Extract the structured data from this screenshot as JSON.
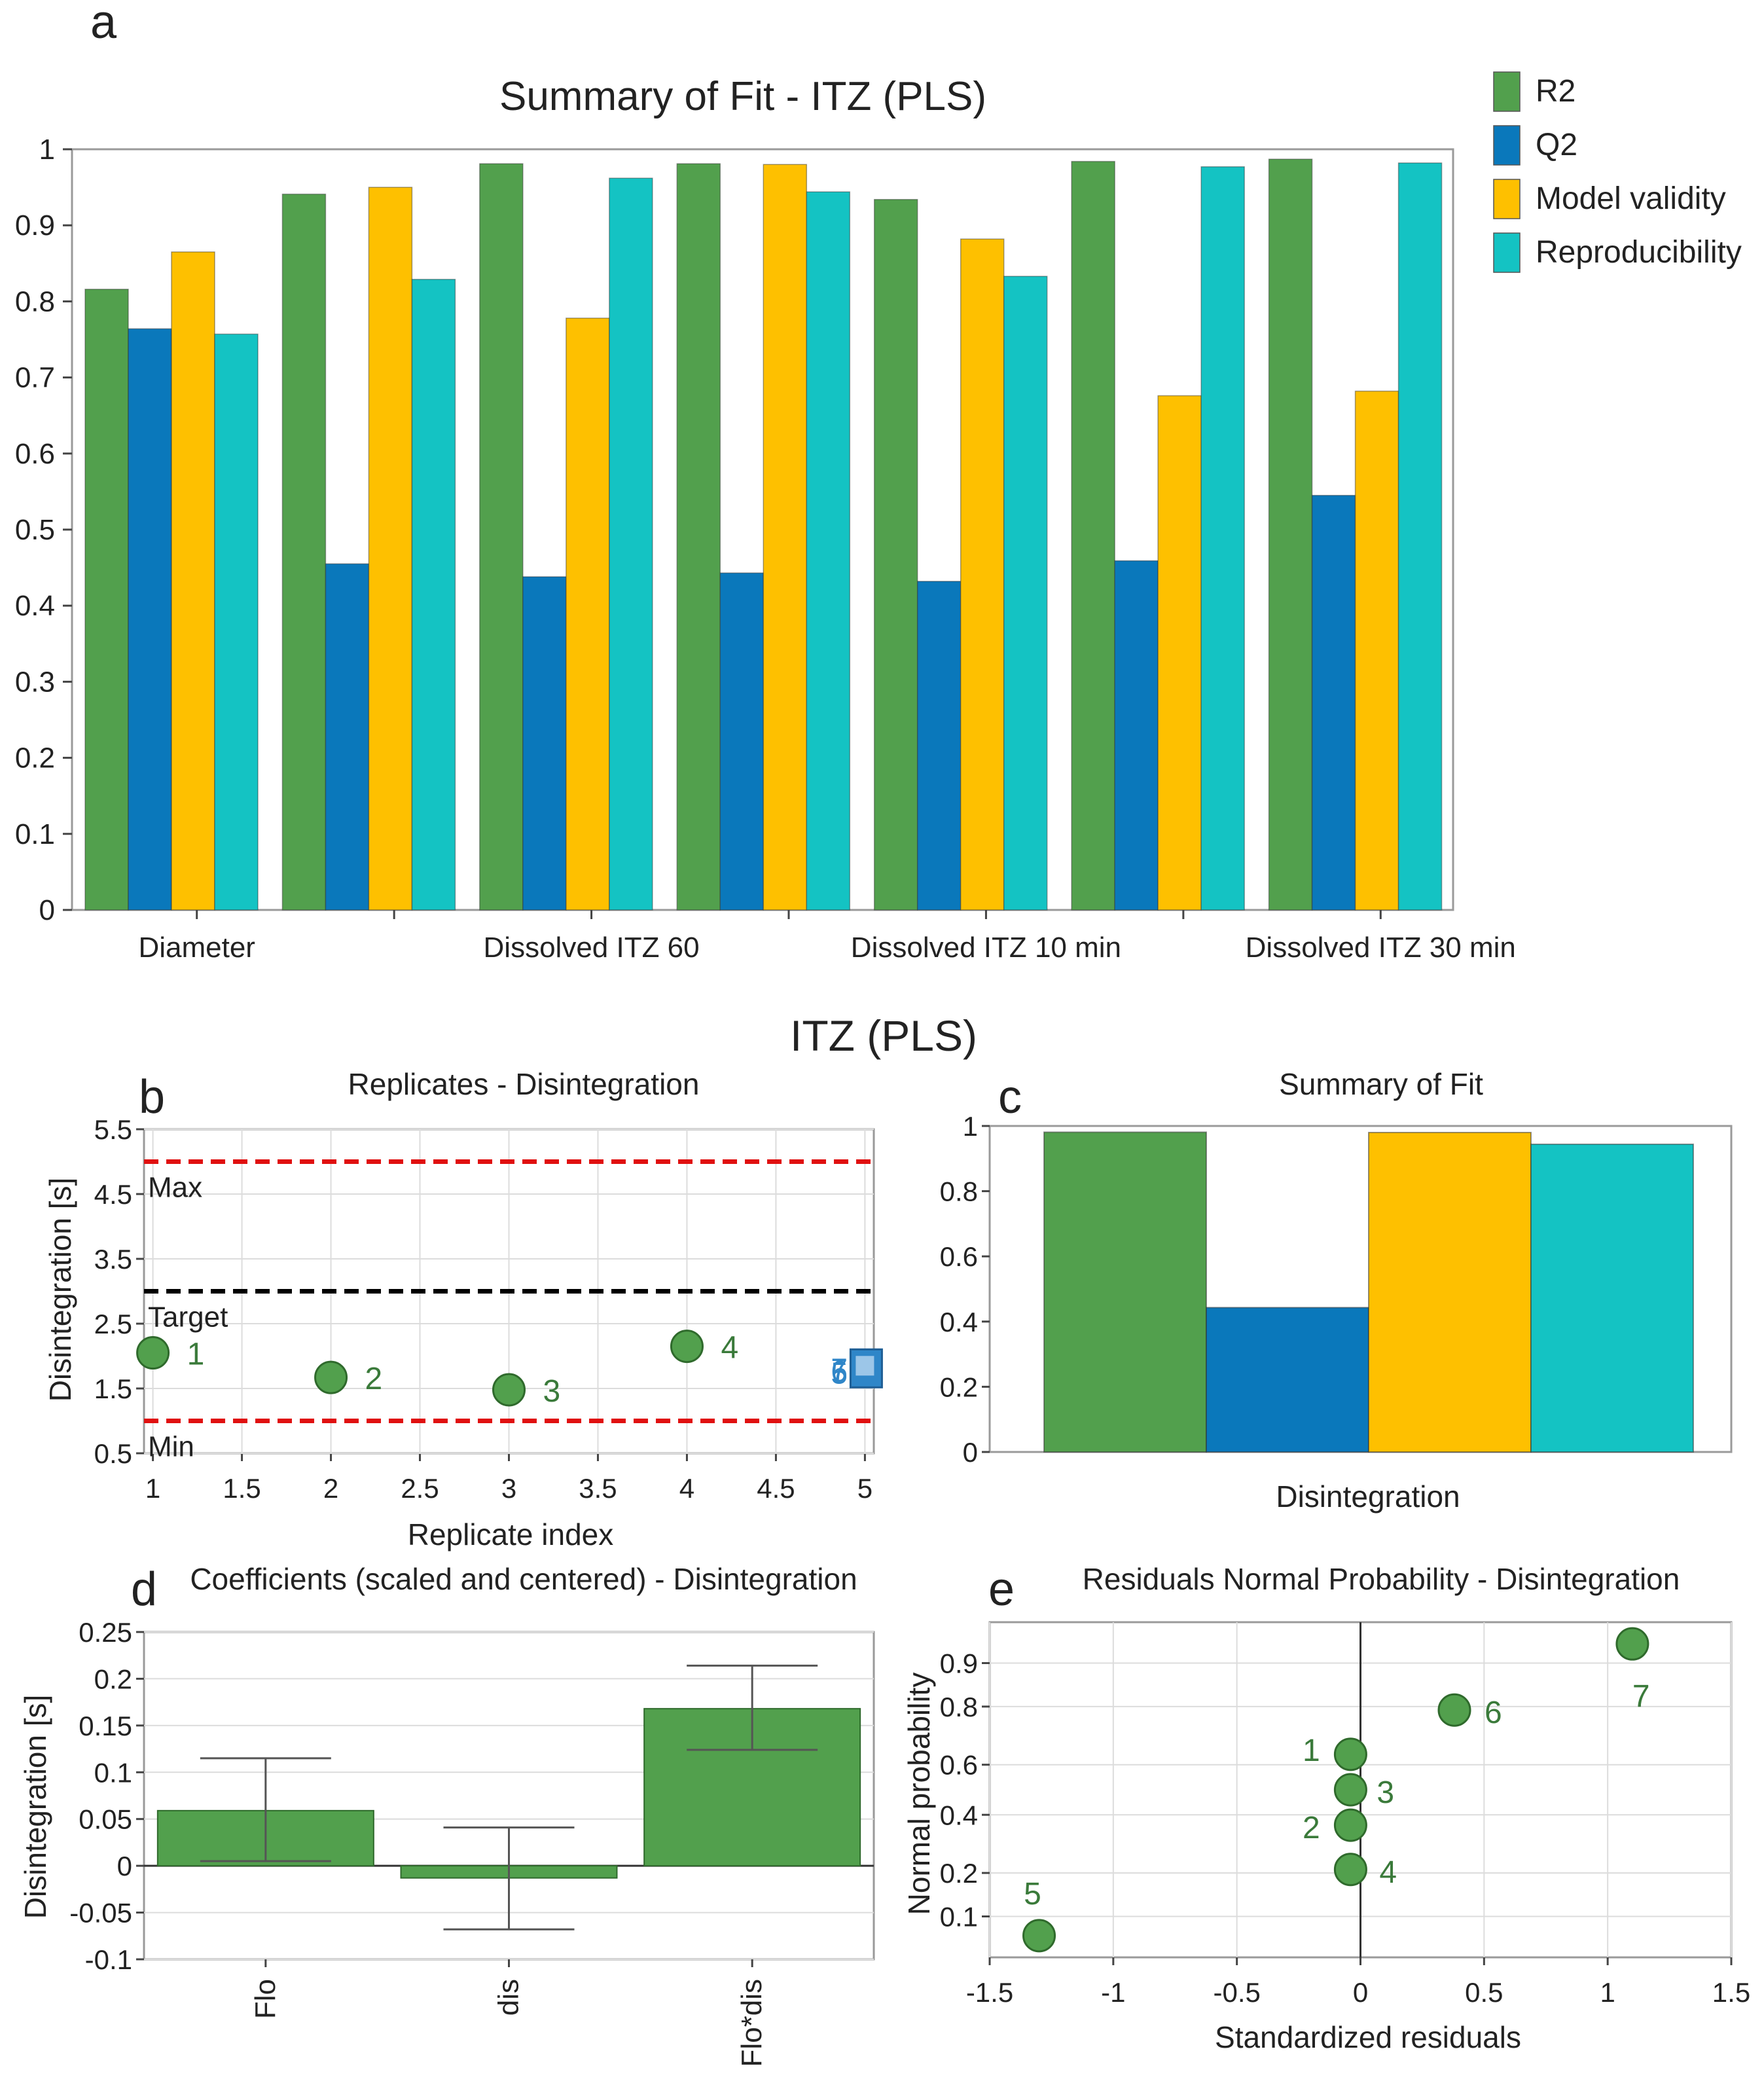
{
  "figure_title": "ITZ (PLS)",
  "colors": {
    "r2": "#52a04d",
    "q2": "#0a78bb",
    "model_validity": "#fec000",
    "reproducibility": "#14c3c3",
    "max_min_line": "#e01010",
    "target_line": "#000000",
    "replicate_point": "#52a04d",
    "replicate_label": "#3a7a3a",
    "replicate_square": "#2f86c8"
  },
  "chart_data": [
    {
      "id": "a",
      "panel_letter": "a",
      "type": "bar",
      "title": "Summary of Fit - ITZ (PLS)",
      "ylim": [
        0,
        1
      ],
      "yticks": [
        "0",
        "0.1",
        "0.2",
        "0.3",
        "0.4",
        "0.5",
        "0.6",
        "0.7",
        "0.8",
        "0.9",
        "1"
      ],
      "categories": [
        "Diameter",
        "",
        "Dissolved ITZ 60",
        "",
        "Dissolved ITZ 10 min",
        "",
        "Dissolved ITZ 30 min"
      ],
      "series": [
        {
          "name": "R2",
          "color_key": "r2",
          "values": [
            0.816,
            0.941,
            0.981,
            0.981,
            0.934,
            0.984,
            0.987
          ]
        },
        {
          "name": "Q2",
          "color_key": "q2",
          "values": [
            0.764,
            0.455,
            0.438,
            0.443,
            0.432,
            0.459,
            0.545
          ]
        },
        {
          "name": "Model validity",
          "color_key": "model_validity",
          "values": [
            0.865,
            0.95,
            0.778,
            0.98,
            0.882,
            0.676,
            0.682
          ]
        },
        {
          "name": "Reproducibility",
          "color_key": "reproducibility",
          "values": [
            0.757,
            0.829,
            0.962,
            0.944,
            0.833,
            0.977,
            0.982
          ]
        }
      ],
      "legend_position": "top-right"
    },
    {
      "id": "b",
      "panel_letter": "b",
      "type": "scatter",
      "title": "Replicates - Disintegration",
      "xlabel": "Replicate index",
      "ylabel": "Disintegration [s]",
      "xlim": [
        0.95,
        5.05
      ],
      "ylim": [
        0.5,
        5.5
      ],
      "xticks": [
        "1",
        "1.5",
        "2",
        "2.5",
        "3",
        "3.5",
        "4",
        "4.5",
        "5"
      ],
      "yticks": [
        "0.5",
        "1.5",
        "2.5",
        "3.5",
        "4.5",
        "5.5"
      ],
      "reference_lines": [
        {
          "label": "Max",
          "y": 5.0,
          "style": "dashed",
          "color_key": "max_min_line"
        },
        {
          "label": "Target",
          "y": 3.0,
          "style": "dashed",
          "color_key": "target_line"
        },
        {
          "label": "Min",
          "y": 1.0,
          "style": "dashed",
          "color_key": "max_min_line"
        }
      ],
      "points": [
        {
          "x": 1,
          "y": 2.05,
          "label": "1"
        },
        {
          "x": 2,
          "y": 1.67,
          "label": "2"
        },
        {
          "x": 3,
          "y": 1.48,
          "label": "3"
        },
        {
          "x": 4,
          "y": 2.15,
          "label": "4"
        }
      ],
      "replicate_group": {
        "x": 5,
        "y": 1.8,
        "labels": [
          "7",
          "6",
          "5"
        ]
      }
    },
    {
      "id": "c",
      "panel_letter": "c",
      "type": "bar",
      "title": "Summary of Fit",
      "ylim": [
        0,
        1
      ],
      "yticks": [
        "0",
        "0.2",
        "0.4",
        "0.6",
        "0.8",
        "1"
      ],
      "categories": [
        "Disintegration"
      ],
      "series": [
        {
          "name": "R2",
          "color_key": "r2",
          "values": [
            0.981
          ]
        },
        {
          "name": "Q2",
          "color_key": "q2",
          "values": [
            0.443
          ]
        },
        {
          "name": "Model validity",
          "color_key": "model_validity",
          "values": [
            0.98
          ]
        },
        {
          "name": "Reproducibility",
          "color_key": "reproducibility",
          "values": [
            0.944
          ]
        }
      ]
    },
    {
      "id": "d",
      "panel_letter": "d",
      "type": "bar",
      "title": "Coefficients (scaled and centered) - Disintegration",
      "ylabel": "Disintegration [s]",
      "ylim": [
        -0.1,
        0.25
      ],
      "yticks": [
        "-0.1",
        "-0.05",
        "0",
        "0.05",
        "0.1",
        "0.15",
        "0.2",
        "0.25"
      ],
      "categories": [
        "Flo",
        "dis",
        "Flo*dis"
      ],
      "values": [
        0.059,
        -0.013,
        0.168
      ],
      "error_low": [
        0.005,
        -0.068,
        0.124
      ],
      "error_high": [
        0.115,
        0.041,
        0.214
      ],
      "color_key": "r2"
    },
    {
      "id": "e",
      "panel_letter": "e",
      "type": "scatter",
      "title": "Residuals Normal Probability - Disintegration",
      "xlabel": "Standardized residuals",
      "ylabel": "Normal probability",
      "xlim": [
        -1.5,
        1.5
      ],
      "xticks": [
        "-1.5",
        "-1",
        "-0.5",
        "0",
        "0.5",
        "1",
        "1.5"
      ],
      "yticks": [
        "0.1",
        "0.2",
        "0.4",
        "0.6",
        "0.8",
        "0.9"
      ],
      "y_scale": "normal-probability",
      "points": [
        {
          "label": "1",
          "x": -0.04,
          "y": 0.64
        },
        {
          "label": "2",
          "x": -0.04,
          "y": 0.36
        },
        {
          "label": "3",
          "x": -0.04,
          "y": 0.5
        },
        {
          "label": "4",
          "x": -0.04,
          "y": 0.21
        },
        {
          "label": "5",
          "x": -1.3,
          "y": 0.07
        },
        {
          "label": "6",
          "x": 0.38,
          "y": 0.79
        },
        {
          "label": "7",
          "x": 1.1,
          "y": 0.93
        }
      ]
    }
  ]
}
